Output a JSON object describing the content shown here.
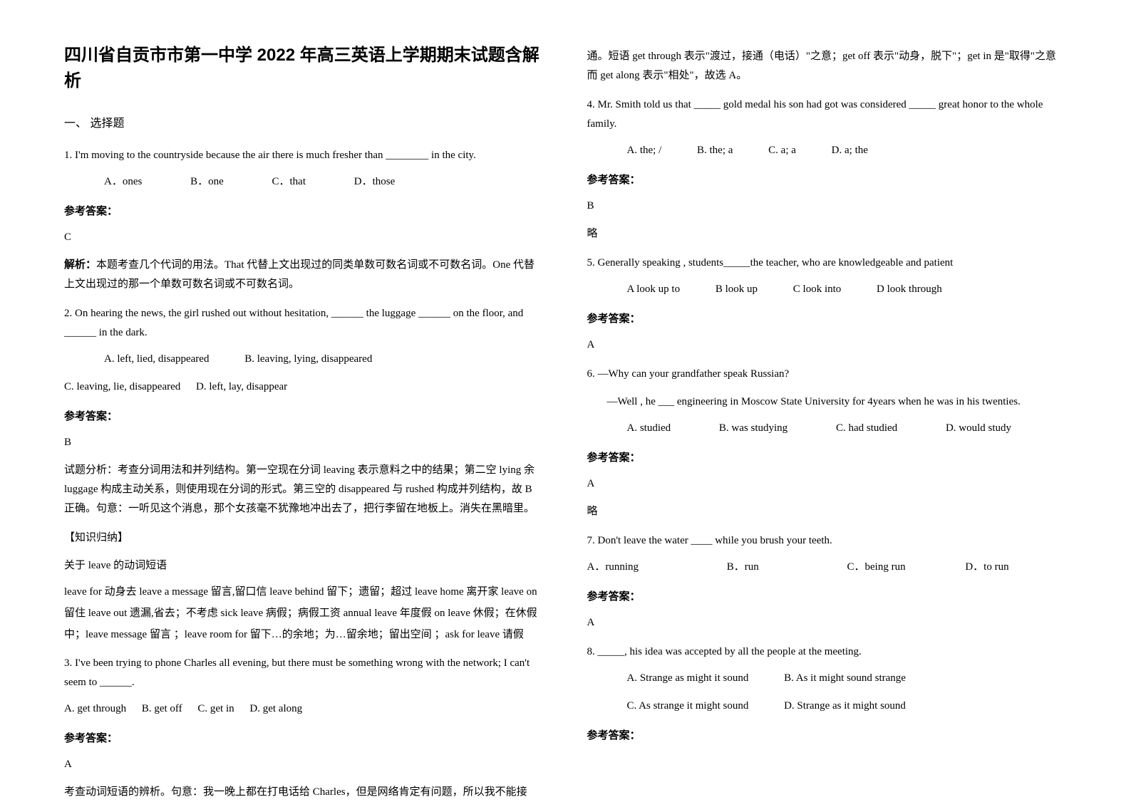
{
  "title": "四川省自贡市市第一中学 2022 年高三英语上学期期末试题含解析",
  "section1": "一、 选择题",
  "answer_label": "参考答案：",
  "q1": {
    "stem": "1. I'm moving to the countryside because the air there is much fresher than ________ in the city.",
    "optA": "A．ones",
    "optB": "B．one",
    "optC": "C．that",
    "optD": "D．those",
    "answer": "C",
    "expl": "解析：本题考查几个代词的用法。That 代替上文出现过的同类单数可数名词或不可数名词。One 代替上文出现过的那一个单数可数名词或不可数名词。"
  },
  "q2": {
    "stem": "2. On hearing the news, the girl rushed out without hesitation, ______ the luggage ______ on the floor, and ______ in the dark.",
    "optA": "A. left, lied, disappeared",
    "optB": "B. leaving, lying, disappeared",
    "optC": "C. leaving, lie, disappeared",
    "optD": "D. left, lay, disappear",
    "answer": "B",
    "expl1": "试题分析：考查分词用法和并列结构。第一空现在分词 leaving 表示意料之中的结果；第二空 lying 余 luggage 构成主动关系，则使用现在分词的形式。第三空的 disappeared 与 rushed 构成并列结构，故 B 正确。句意：一听见这个消息，那个女孩毫不犹豫地冲出去了，把行李留在地板上。消失在黑暗里。",
    "note_title": "【知识归纳】",
    "note_sub": "关于 leave 的动词短语",
    "note_body": "leave for 动身去  leave a message 留言,留口信  leave behind 留下；遗留；超过  leave home 离开家  leave on 留住  leave out 遗漏,省去；不考虑  sick leave 病假；病假工资  annual leave 年度假  on leave 休假；在休假中；leave message 留言 ；leave room for 留下…的余地；为…留余地；留出空间 ；ask for leave 请假"
  },
  "q3": {
    "stem": "3. I've been trying to phone Charles all evening, but there must be something wrong with the network; I can't seem to ______.",
    "optA": "A. get through",
    "optB": "B. get off",
    "optC": "C. get in",
    "optD": "D. get along",
    "answer": "A",
    "expl_p1": "考查动词短语的辨析。句意：我一晚上都在打电话给 Charles，但是网络肯定有问题，所以我不能接",
    "expl_p2": "通。短语 get through 表示\"渡过，接通（电话）\"之意；get off 表示\"动身，脱下\"；get in 是\"取得\"之意而 get along 表示\"相处\"，故选 A。"
  },
  "q4": {
    "stem": "4. Mr. Smith told us that _____ gold medal his son had got was considered _____ great honor to the whole family.",
    "optA": "A. the; /",
    "optB": "B. the; a",
    "optC": "C. a; a",
    "optD": "D. a; the",
    "answer": "B",
    "note": "略"
  },
  "q5": {
    "stem": "5. Generally speaking , students_____the teacher, who are knowledgeable and patient",
    "optA": "A look up to",
    "optB": "B look up",
    "optC": "C look into",
    "optD": "D look through",
    "answer": "A"
  },
  "q6": {
    "stem1": "6. —Why can your grandfather speak Russian?",
    "stem2": "—Well , he ___ engineering in Moscow State University for 4years when he was in his twenties.",
    "optA": "A. studied",
    "optB": "B. was studying",
    "optC": "C. had studied",
    "optD": "D. would study",
    "answer": "A",
    "note": "略"
  },
  "q7": {
    "stem": "7. Don't leave the water ____ while you brush your teeth.",
    "optA": "A．running",
    "optB": "B．run",
    "optC": "C．being run",
    "optD": "D．to run",
    "answer": "A"
  },
  "q8": {
    "stem": "8. _____, his idea was accepted by all the people at the meeting.",
    "optA": "A. Strange as might it sound",
    "optB": "B. As it might sound strange",
    "optC": "C. As strange it might sound",
    "optD": "D. Strange as it might sound"
  }
}
